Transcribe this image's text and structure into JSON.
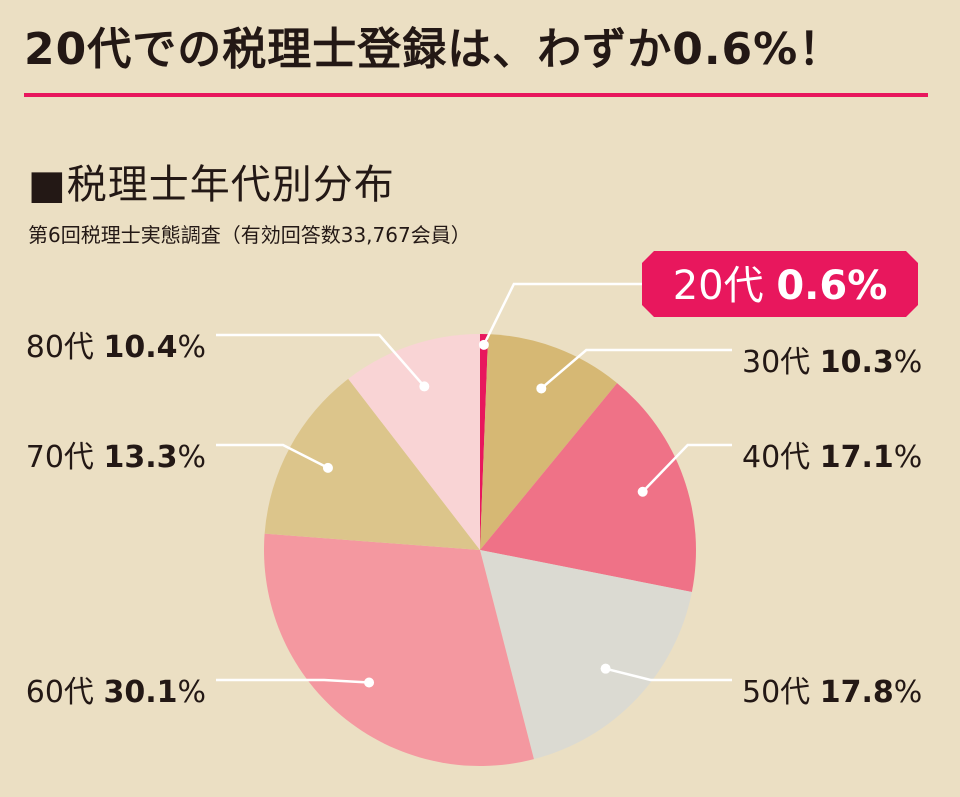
{
  "headline": "20代での税理士登録は、わずか0.6%！",
  "chart_data": {
    "type": "pie",
    "title": "■税理士年代別分布",
    "subtitle": "第6回税理士実態調査（有効回答数33,767会員）",
    "slices": [
      {
        "label": "20代",
        "value": 0.6,
        "color": "#e8175d",
        "highlight": true
      },
      {
        "label": "30代",
        "value": 10.3,
        "color": "#d6b874"
      },
      {
        "label": "40代",
        "value": 17.1,
        "color": "#ef7287"
      },
      {
        "label": "50代",
        "value": 17.8,
        "color": "#dbdad2"
      },
      {
        "label": "60代",
        "value": 30.1,
        "color": "#f498a0"
      },
      {
        "label": "70代",
        "value": 13.3,
        "color": "#dcc58b"
      },
      {
        "label": "80代",
        "value": 10.4,
        "color": "#f9d4d5"
      }
    ],
    "unit": "%",
    "label_color": "#231815",
    "highlight_text_color": "#ffffff",
    "leader_color": "#ffffff"
  }
}
